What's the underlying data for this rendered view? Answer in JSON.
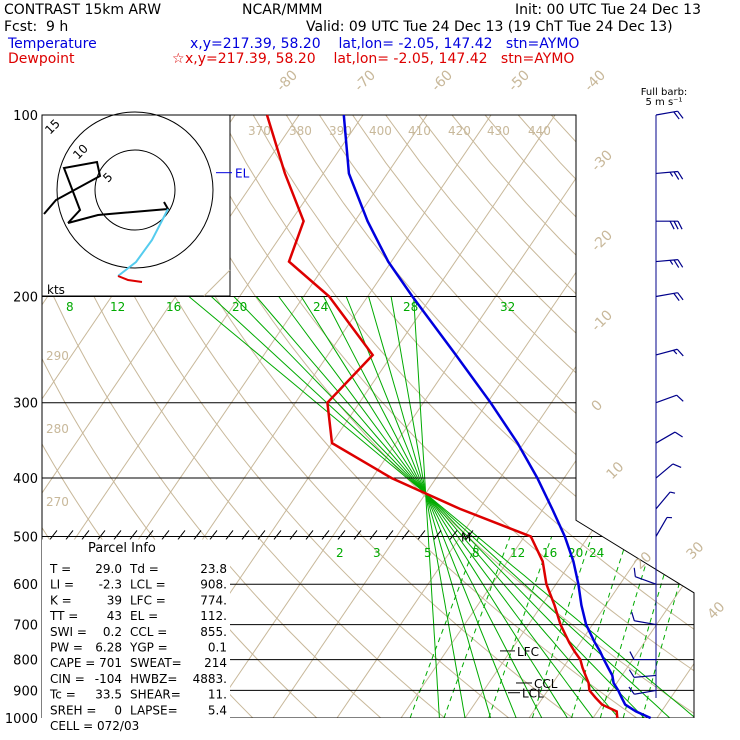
{
  "header": {
    "model": "CONTRAST 15km ARW",
    "center": "NCAR/MMM",
    "init": "Init: 00 UTC Tue 24 Dec 13",
    "fcst_label": "Fcst:",
    "fcst_value": "9 h",
    "valid": "Valid: 09 UTC Tue 24 Dec 13 (19 ChT Tue 24 Dec 13)",
    "temperature_label": "Temperature",
    "temperature_info": "x,y=217.39, 58.20    lat,lon= -2.05, 147.42   stn=AYMO",
    "dewpoint_label": "Dewpoint",
    "dewpoint_info": "x,y=217.39, 58.20    lat,lon= -2.05, 147.42   stn=AYMO",
    "dewpoint_marker": "☆"
  },
  "colors": {
    "temperature": "#0000dd",
    "dewpoint": "#dd0000",
    "isotherm": "#c8b89a",
    "mixing_ratio": "#00aa00",
    "isobar": "#000000",
    "wind": "#00008b",
    "hodograph_lower": "#000000",
    "hodograph_upper": "#55ccee"
  },
  "chart_data": {
    "type": "line",
    "subtype": "skew-T log-p",
    "y_axis": {
      "label": "",
      "scale": "log",
      "ylim": [
        1000,
        100
      ],
      "ticks": [
        100,
        200,
        300,
        400,
        500,
        600,
        700,
        800,
        900,
        1000
      ]
    },
    "series": [
      {
        "name": "Temperature",
        "pressure": [
          1000,
          975,
          950,
          925,
          900,
          875,
          850,
          825,
          800,
          775,
          750,
          700,
          650,
          600,
          550,
          500,
          450,
          400,
          350,
          300,
          250,
          200,
          175,
          150,
          125,
          100
        ],
        "values": [
          29.0,
          26.0,
          23.6,
          22.3,
          21.0,
          19.5,
          18.5,
          17.0,
          15.5,
          14.0,
          12.3,
          9.0,
          6.2,
          3.5,
          0.3,
          -3.7,
          -8.6,
          -14.2,
          -21.0,
          -29.5,
          -40.0,
          -53.0,
          -60.5,
          -68.0,
          -76.0,
          -83.0
        ]
      },
      {
        "name": "Dewpoint",
        "pressure": [
          1000,
          975,
          950,
          925,
          900,
          875,
          850,
          825,
          800,
          775,
          750,
          700,
          650,
          600,
          550,
          500,
          450,
          400,
          350,
          300,
          250,
          200,
          175,
          150,
          125,
          100
        ],
        "values": [
          23.8,
          23.0,
          20.0,
          18.2,
          16.5,
          15.6,
          14.3,
          13.0,
          11.8,
          10.0,
          8.3,
          5.0,
          2.0,
          -1.5,
          -4.5,
          -9.0,
          -23.0,
          -37.0,
          -50.0,
          -55.0,
          -53.0,
          -66.0,
          -76.0,
          -78.0,
          -86.0,
          -95.0
        ]
      }
    ],
    "isotherm_labels": [
      "-80",
      "-70",
      "-60",
      "-50",
      "-40",
      "-30",
      "-20",
      "-10",
      "0",
      "10",
      "20",
      "30",
      "40"
    ],
    "dry_adiabat_labels": [
      "370",
      "380",
      "390",
      "400",
      "410",
      "420",
      "430",
      "440",
      "290",
      "280",
      "270"
    ],
    "mixing_ratio_labels_upper": [
      "8",
      "12",
      "16",
      "20",
      "24",
      "28",
      "32"
    ],
    "mixing_ratio_labels_lower": [
      "2",
      "3",
      "5",
      "8",
      "12",
      "16",
      "20",
      "24"
    ],
    "annotations": {
      "el": "EL",
      "lfc": "LFC",
      "ccl": "CCL",
      "lcl": "LCL",
      "m": "M"
    },
    "wind_title": "Full barb:",
    "wind_unit": "5 m s⁻¹",
    "wind_profile": [
      {
        "p": 100,
        "speed_ms": 10,
        "dir_deg": 80
      },
      {
        "p": 125,
        "speed_ms": 12,
        "dir_deg": 85
      },
      {
        "p": 150,
        "speed_ms": 15,
        "dir_deg": 90
      },
      {
        "p": 175,
        "speed_ms": 13,
        "dir_deg": 85
      },
      {
        "p": 200,
        "speed_ms": 10,
        "dir_deg": 80
      },
      {
        "p": 250,
        "speed_ms": 7,
        "dir_deg": 75
      },
      {
        "p": 300,
        "speed_ms": 5,
        "dir_deg": 70
      },
      {
        "p": 350,
        "speed_ms": 4,
        "dir_deg": 60
      },
      {
        "p": 400,
        "speed_ms": 4,
        "dir_deg": 50
      },
      {
        "p": 450,
        "speed_ms": 3,
        "dir_deg": 40
      },
      {
        "p": 500,
        "speed_ms": 3,
        "dir_deg": 30
      },
      {
        "p": 600,
        "speed_ms": 4,
        "dir_deg": 290
      },
      {
        "p": 700,
        "speed_ms": 5,
        "dir_deg": 280
      },
      {
        "p": 800,
        "speed_ms": 6,
        "dir_deg": 270
      },
      {
        "p": 850,
        "speed_ms": 5,
        "dir_deg": 265
      },
      {
        "p": 900,
        "speed_ms": 4,
        "dir_deg": 260
      }
    ],
    "hodograph": {
      "ring_labels": [
        "5",
        "10",
        "15"
      ],
      "unit_label": "kts"
    }
  },
  "parcel_info": {
    "title": "Parcel Info",
    "rows": [
      [
        "T   =",
        "29.0",
        "Td =",
        "23.8"
      ],
      [
        "LI  =",
        "-2.3",
        "LCL =",
        "908."
      ],
      [
        "K   =",
        "39",
        "LFC =",
        "774."
      ],
      [
        "TT  =",
        "43",
        "EL  =",
        "112."
      ],
      [
        "SWI =",
        "0.2",
        "CCL =",
        "855."
      ],
      [
        "PW  =",
        "6.28",
        "YGP =",
        "0.1"
      ],
      [
        "CAPE =",
        "701",
        "SWEAT=",
        "214"
      ],
      [
        "CIN =",
        "-104",
        "HWBZ=",
        "4883."
      ],
      [
        "Tc  =",
        "33.5",
        "SHEAR=",
        "11."
      ],
      [
        "SREH =",
        "0",
        "LAPSE=",
        "5.4"
      ]
    ],
    "cell": "CELL = 072/03"
  }
}
